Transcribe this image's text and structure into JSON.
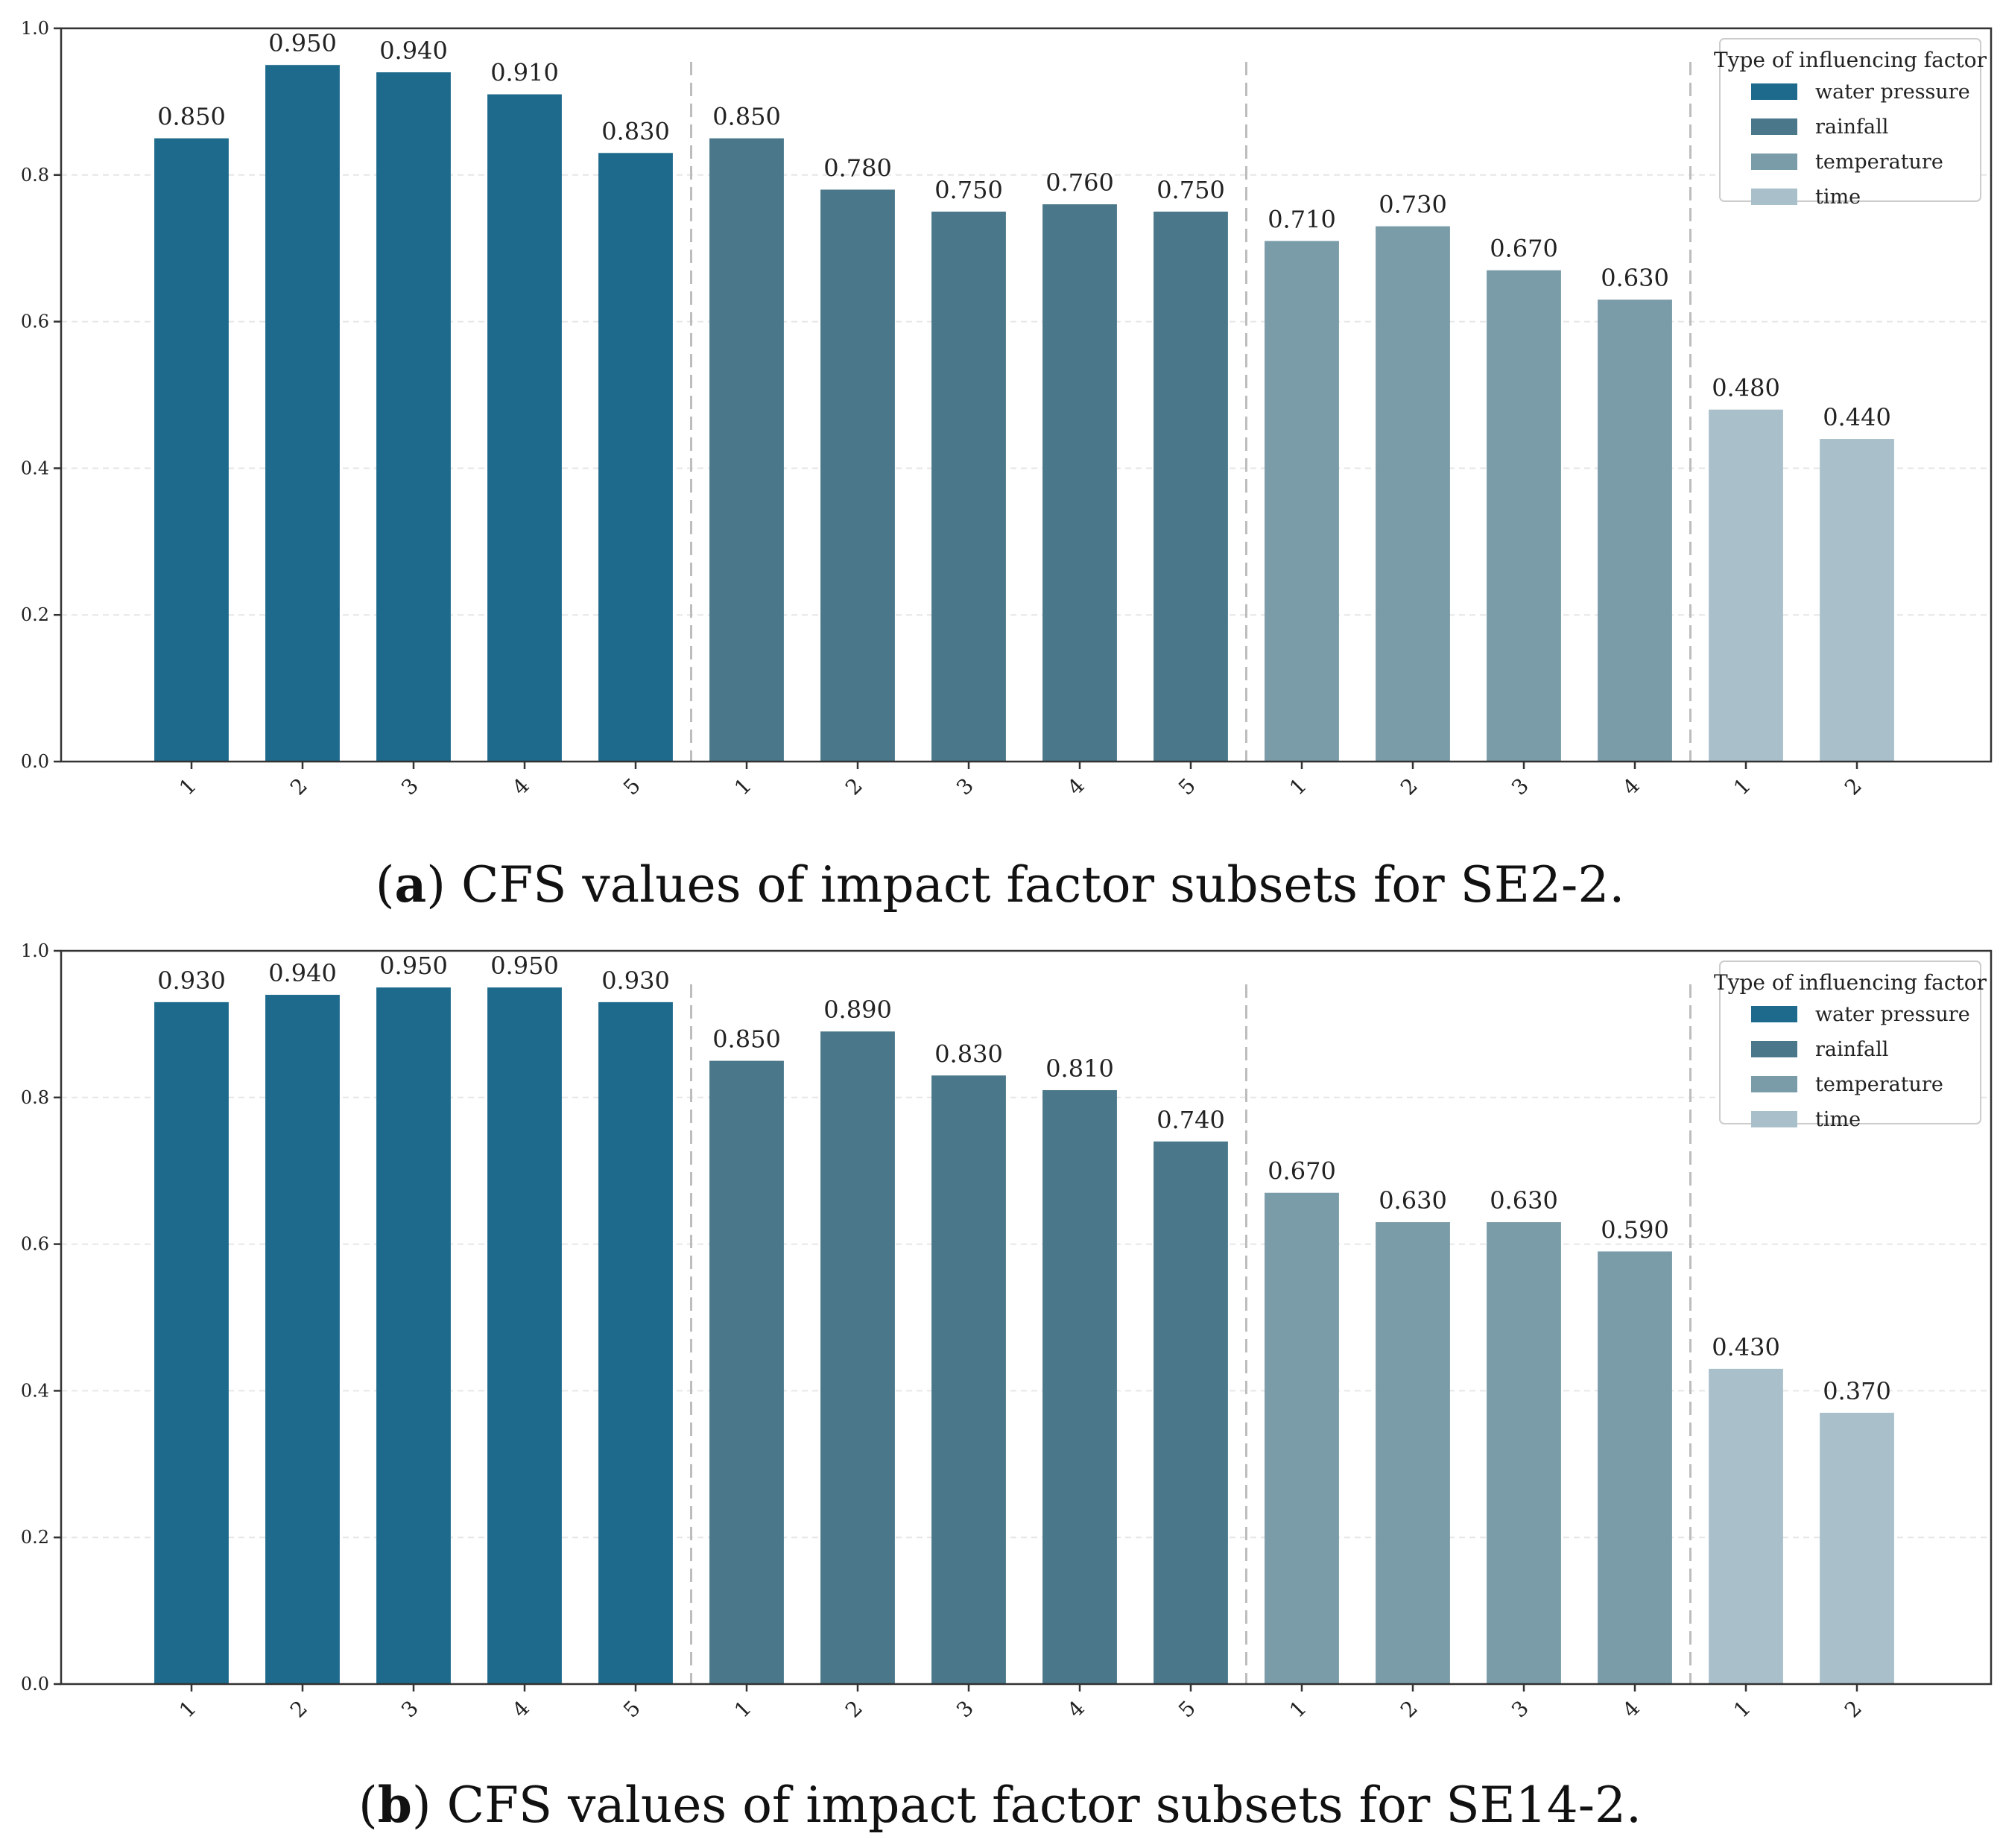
{
  "colors": {
    "water pressure": "#1d6a8c",
    "rainfall": "#4a788a",
    "temperature": "#7a9ba8",
    "time": "#a9c0cb"
  },
  "chart_data": [
    {
      "type": "bar",
      "panel": "a",
      "caption_letter": "a",
      "caption_text": "CFS values of impact factor subsets for SE2-2.",
      "ylim": [
        0,
        1.0
      ],
      "yticks": [
        "0.0",
        "0.2",
        "0.4",
        "0.6",
        "0.8",
        "1.0"
      ],
      "legend_title": "Type of influencing factor",
      "legend_position": "top-right",
      "groups": [
        {
          "name": "water pressure",
          "categories": [
            "1",
            "2",
            "3",
            "4",
            "5"
          ],
          "values": [
            0.85,
            0.95,
            0.94,
            0.91,
            0.83
          ],
          "labels": [
            "0.850",
            "0.950",
            "0.940",
            "0.910",
            "0.830"
          ]
        },
        {
          "name": "rainfall",
          "categories": [
            "1",
            "2",
            "3",
            "4",
            "5"
          ],
          "values": [
            0.85,
            0.78,
            0.75,
            0.76,
            0.75
          ],
          "labels": [
            "0.850",
            "0.780",
            "0.750",
            "0.760",
            "0.750"
          ]
        },
        {
          "name": "temperature",
          "categories": [
            "1",
            "2",
            "3",
            "4"
          ],
          "values": [
            0.71,
            0.73,
            0.67,
            0.63
          ],
          "labels": [
            "0.710",
            "0.730",
            "0.670",
            "0.630"
          ]
        },
        {
          "name": "time",
          "categories": [
            "1",
            "2"
          ],
          "values": [
            0.48,
            0.44
          ],
          "labels": [
            "0.480",
            "0.440"
          ]
        }
      ]
    },
    {
      "type": "bar",
      "panel": "b",
      "caption_letter": "b",
      "caption_text": "CFS values of impact factor subsets for SE14-2.",
      "ylim": [
        0,
        1.0
      ],
      "yticks": [
        "0.0",
        "0.2",
        "0.4",
        "0.6",
        "0.8",
        "1.0"
      ],
      "legend_title": "Type of influencing factor",
      "legend_position": "top-right",
      "groups": [
        {
          "name": "water pressure",
          "categories": [
            "1",
            "2",
            "3",
            "4",
            "5"
          ],
          "values": [
            0.93,
            0.94,
            0.95,
            0.95,
            0.93
          ],
          "labels": [
            "0.930",
            "0.940",
            "0.950",
            "0.950",
            "0.930"
          ]
        },
        {
          "name": "rainfall",
          "categories": [
            "1",
            "2",
            "3",
            "4",
            "5"
          ],
          "values": [
            0.85,
            0.89,
            0.83,
            0.81,
            0.74
          ],
          "labels": [
            "0.850",
            "0.890",
            "0.830",
            "0.810",
            "0.740"
          ]
        },
        {
          "name": "temperature",
          "categories": [
            "1",
            "2",
            "3",
            "4"
          ],
          "values": [
            0.67,
            0.63,
            0.63,
            0.59
          ],
          "labels": [
            "0.670",
            "0.630",
            "0.630",
            "0.590"
          ]
        },
        {
          "name": "time",
          "categories": [
            "1",
            "2"
          ],
          "values": [
            0.43,
            0.37
          ],
          "labels": [
            "0.430",
            "0.370"
          ]
        }
      ]
    }
  ]
}
